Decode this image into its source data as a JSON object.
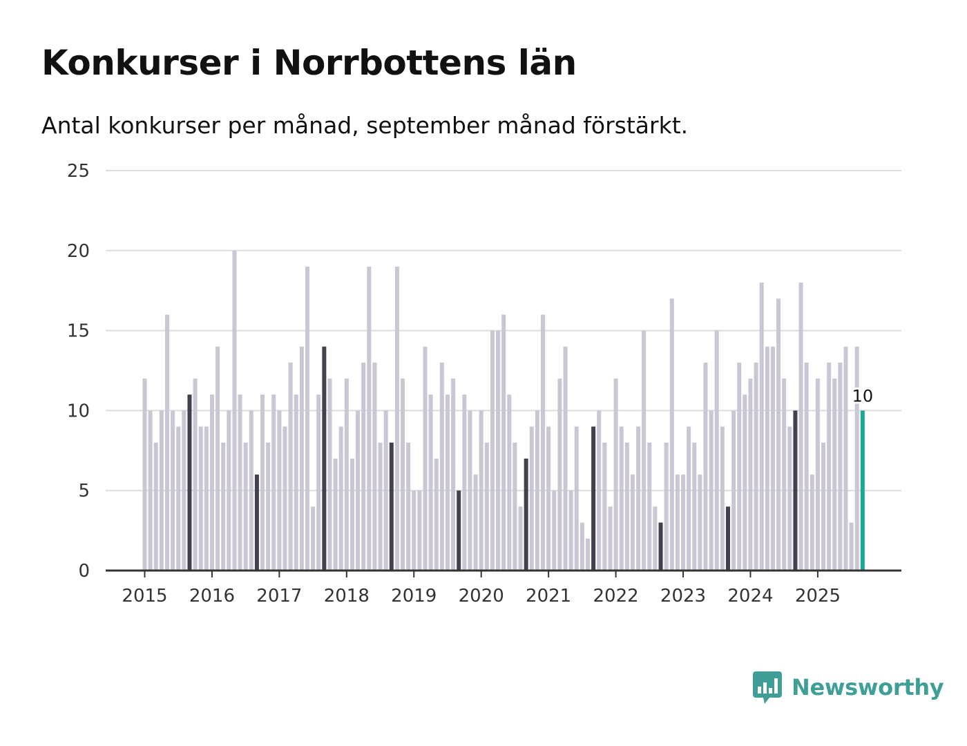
{
  "chart_data": {
    "type": "bar",
    "title": "Konkurser i Norrbottens län",
    "subtitle": "Antal konkurser per månad, september månad förstärkt.",
    "xlabel": "",
    "ylabel": "",
    "ylim": [
      0,
      25
    ],
    "y_ticks": [
      "0",
      "5",
      "10",
      "15",
      "20",
      "25"
    ],
    "x_tick_labels": [
      "2015",
      "2016",
      "2017",
      "2018",
      "2019",
      "2020",
      "2021",
      "2022",
      "2023",
      "2024",
      "2025"
    ],
    "start": "2015-01",
    "highlight_month": "september",
    "values": [
      12,
      10,
      8,
      10,
      16,
      10,
      9,
      10,
      11,
      12,
      9,
      9,
      11,
      14,
      8,
      10,
      20,
      11,
      8,
      10,
      6,
      11,
      8,
      11,
      10,
      9,
      13,
      11,
      14,
      19,
      4,
      11,
      14,
      12,
      7,
      9,
      12,
      7,
      10,
      13,
      19,
      13,
      8,
      10,
      8,
      19,
      12,
      8,
      5,
      5,
      14,
      11,
      7,
      13,
      11,
      12,
      5,
      11,
      10,
      6,
      10,
      8,
      15,
      15,
      16,
      11,
      8,
      4,
      7,
      9,
      10,
      16,
      9,
      5,
      12,
      14,
      5,
      9,
      3,
      2,
      9,
      10,
      8,
      4,
      12,
      9,
      8,
      6,
      9,
      15,
      8,
      4,
      3,
      8,
      17,
      6,
      6,
      9,
      8,
      6,
      13,
      10,
      15,
      9,
      4,
      10,
      13,
      11,
      12,
      13,
      18,
      14,
      14,
      17,
      12,
      9,
      10,
      18,
      13,
      6,
      12,
      8,
      13,
      12,
      13,
      14,
      3,
      14,
      10
    ],
    "last_value_label": "10",
    "colors": {
      "bar": "#c8c7d4",
      "september": "#44414f",
      "latest": "#1aa79a",
      "grid": "#dcdcdc",
      "axis": "#333333"
    }
  },
  "brand": {
    "name": "Newsworthy",
    "icon": "newsworthy-logo-icon",
    "color": "#3f9e96"
  }
}
